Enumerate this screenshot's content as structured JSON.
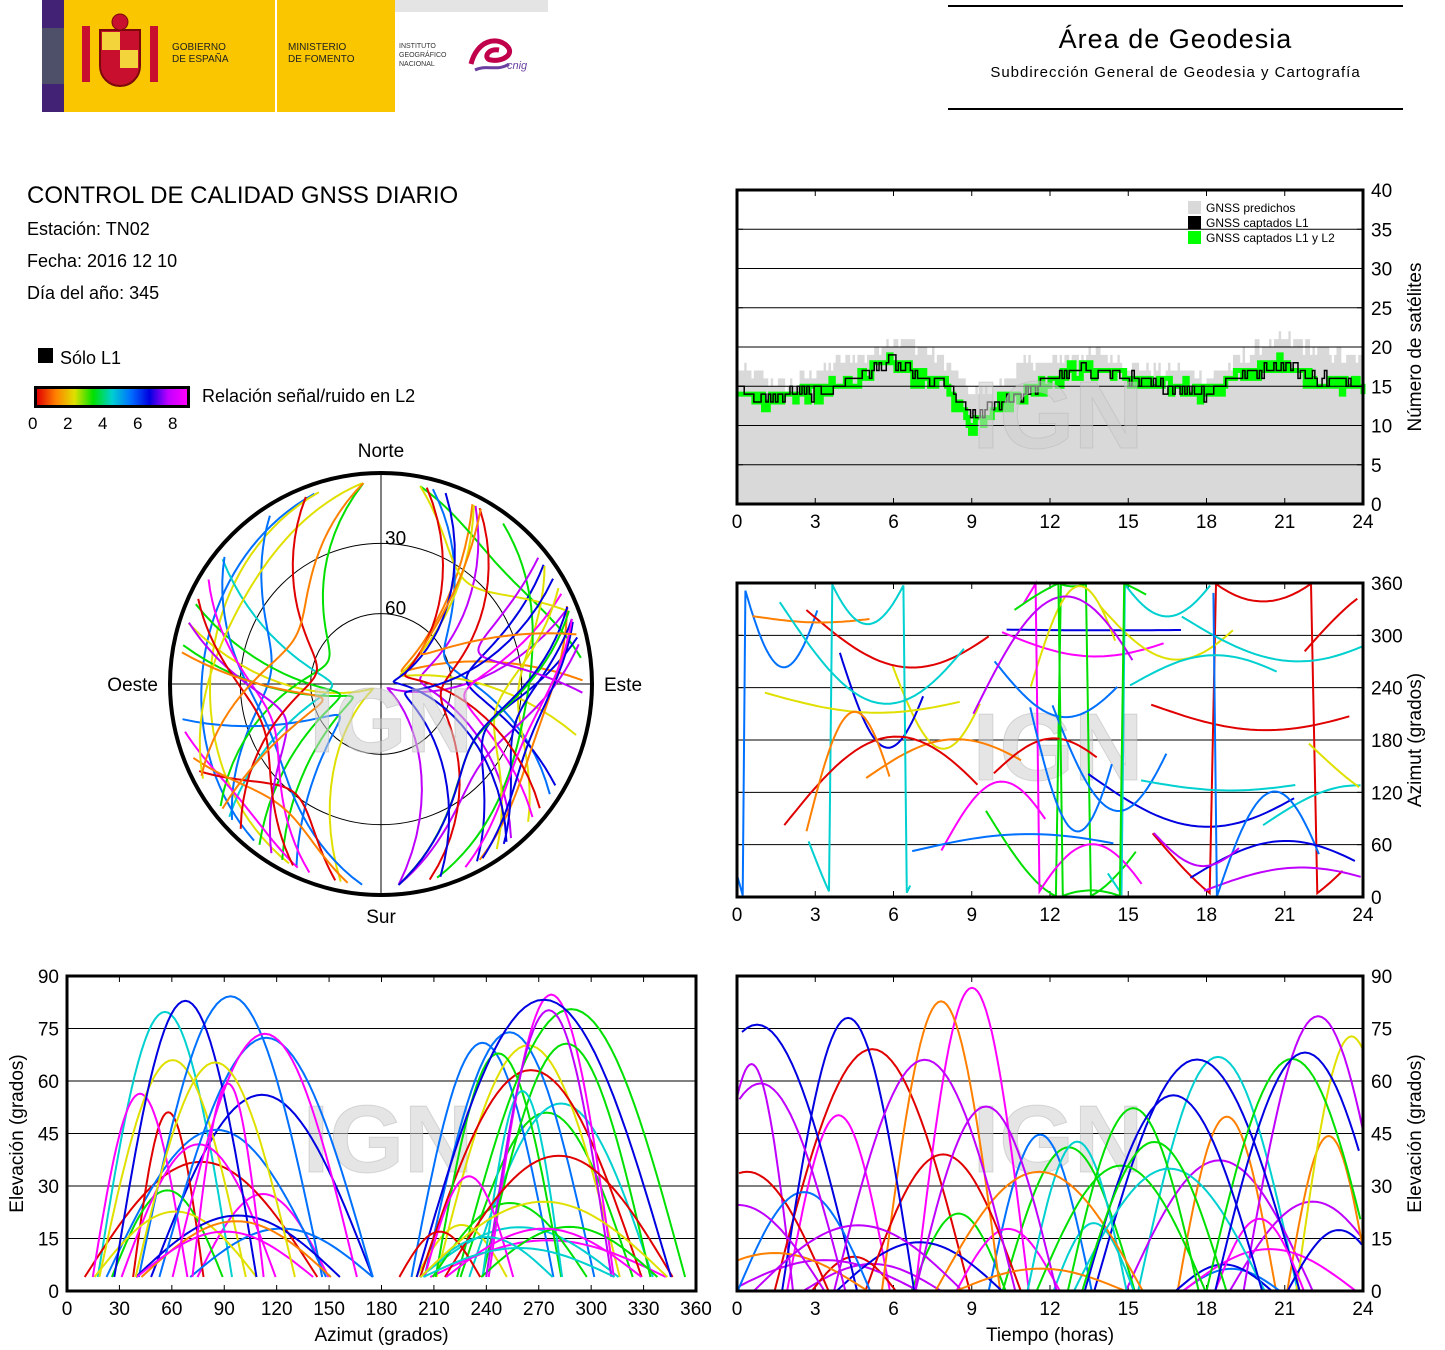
{
  "header": {
    "gov_line1": "GOBIERNO",
    "gov_line2": "DE ESPAÑA",
    "min_line1": "MINISTERIO",
    "min_line2": "DE FOMENTO",
    "inst_line1": "INSTITUTO",
    "inst_line2": "GEOGRÁFICO",
    "inst_line3": "NACIONAL",
    "cnig": "cnig",
    "area_title": "Área de Geodesia",
    "area_subtitle": "Subdirección General de Geodesia y Cartografía"
  },
  "report": {
    "title": "CONTROL DE CALIDAD GNSS DIARIO",
    "station": "Estación: TN02",
    "date": "Fecha: 2016 12 10",
    "doy": "Día del año: 345",
    "solo_l1": "Sólo L1",
    "snr_label": "Relación señal/ruido en L2",
    "snr_ticks": [
      "0",
      "2",
      "4",
      "6",
      "8"
    ]
  },
  "watermark": "IGN",
  "colors": {
    "predicted": "#d9d9d9",
    "l1": "#000000",
    "l1l2": "#00ff00",
    "snr": [
      "#e00000",
      "#ff8000",
      "#e0e000",
      "#00e000",
      "#00d0d0",
      "#0070ff",
      "#0000e0",
      "#c000ff",
      "#ff00ff"
    ]
  },
  "chart_data": [
    {
      "id": "satellites",
      "type": "area",
      "x_range": [
        0,
        24
      ],
      "y_range": [
        0,
        40
      ],
      "x_ticks": [
        "0",
        "3",
        "6",
        "9",
        "12",
        "15",
        "18",
        "21",
        "24"
      ],
      "y_ticks": [
        "0",
        "5",
        "10",
        "15",
        "20",
        "25",
        "30",
        "35",
        "40"
      ],
      "ylabel": "Número de satélites",
      "legend_position": "top-right",
      "legend": [
        "GNSS predichos",
        "GNSS captados L1",
        "GNSS captados L1 y L2"
      ],
      "x": [
        0,
        1,
        2,
        3,
        4,
        5,
        6,
        7,
        8,
        9,
        10,
        11,
        12,
        13,
        14,
        15,
        16,
        17,
        18,
        19,
        20,
        21,
        22,
        23,
        24
      ],
      "predicted": [
        17,
        16,
        15,
        17,
        18,
        19,
        21,
        20,
        18,
        14,
        15,
        18,
        18,
        19,
        19,
        18,
        17,
        17,
        16,
        18,
        20,
        21,
        20,
        19,
        18
      ],
      "l1": [
        15,
        13,
        14,
        14,
        15,
        17,
        18,
        16,
        15,
        11,
        13,
        14,
        16,
        17,
        17,
        16,
        15,
        15,
        14,
        16,
        17,
        18,
        16,
        16,
        15
      ],
      "l1l2": [
        15,
        13,
        14,
        14,
        15,
        17,
        18,
        16,
        15,
        10,
        13,
        14,
        16,
        17,
        17,
        16,
        15,
        15,
        14,
        16,
        17,
        18,
        16,
        15,
        15
      ]
    },
    {
      "id": "skyplot",
      "type": "scatter",
      "labels": {
        "north": "Norte",
        "south": "Sur",
        "east": "Este",
        "west": "Oeste"
      },
      "rings": [
        "30",
        "60"
      ]
    },
    {
      "id": "azimuth-time",
      "type": "scatter",
      "x_range": [
        0,
        24
      ],
      "y_range": [
        0,
        360
      ],
      "x_ticks": [
        "0",
        "3",
        "6",
        "9",
        "12",
        "15",
        "18",
        "21",
        "24"
      ],
      "y_ticks": [
        "0",
        "60",
        "120",
        "180",
        "240",
        "300",
        "360"
      ],
      "ylabel": "Azimut (grados)"
    },
    {
      "id": "elevation-azimuth",
      "type": "scatter",
      "x_range": [
        0,
        360
      ],
      "y_range": [
        0,
        90
      ],
      "x_ticks": [
        "0",
        "30",
        "60",
        "90",
        "120",
        "150",
        "180",
        "210",
        "240",
        "270",
        "300",
        "330",
        "360"
      ],
      "y_ticks": [
        "0",
        "15",
        "30",
        "45",
        "60",
        "75",
        "90"
      ],
      "xlabel": "Azimut (grados)",
      "ylabel": "Elevación (grados)"
    },
    {
      "id": "elevation-time",
      "type": "scatter",
      "x_range": [
        0,
        24
      ],
      "y_range": [
        0,
        90
      ],
      "x_ticks": [
        "0",
        "3",
        "6",
        "9",
        "12",
        "15",
        "18",
        "21",
        "24"
      ],
      "y_ticks": [
        "0",
        "15",
        "30",
        "45",
        "60",
        "75",
        "90"
      ],
      "xlabel": "Tiempo (horas)",
      "ylabel": "Elevación (grados)"
    }
  ]
}
